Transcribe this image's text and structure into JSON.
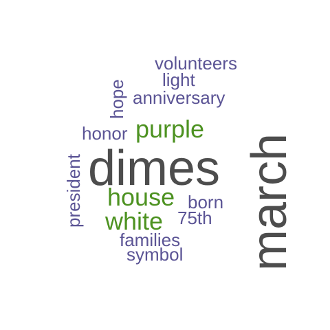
{
  "colors": {
    "large": "#4d4d4d",
    "medium": "#4d9221",
    "small": "#5b5495",
    "background": "#ffffff"
  },
  "words": {
    "march": "march",
    "dimes": "dimes",
    "purple": "purple",
    "house": "house",
    "white": "white",
    "volunteers": "volunteers",
    "light": "light",
    "anniversary": "anniversary",
    "hope": "hope",
    "honor": "honor",
    "president": "president",
    "born": "born",
    "75th": "75th",
    "families": "families",
    "symbol": "symbol"
  },
  "word_groups": {
    "march": "large",
    "dimes": "large",
    "purple": "medium",
    "house": "medium",
    "white": "medium",
    "volunteers": "small",
    "light": "small",
    "anniversary": "small",
    "hope": "small",
    "honor": "small",
    "president": "small",
    "born": "small",
    "75th": "small",
    "families": "small",
    "symbol": "small"
  }
}
